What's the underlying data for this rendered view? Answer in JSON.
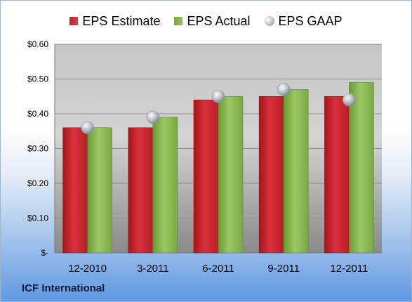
{
  "company": "ICF International",
  "colors": {
    "estimate": "#c8262f",
    "actual": "#8bb853",
    "gaap": "#b6bcc4"
  },
  "chart_data": {
    "type": "bar",
    "categories": [
      "12-2010",
      "3-2011",
      "6-2011",
      "9-2011",
      "12-2011"
    ],
    "series": [
      {
        "name": "EPS Estimate",
        "values": [
          0.36,
          0.36,
          0.44,
          0.45,
          0.45
        ]
      },
      {
        "name": "EPS Actual",
        "values": [
          0.36,
          0.39,
          0.45,
          0.47,
          0.49
        ]
      },
      {
        "name": "EPS GAAP",
        "type": "marker",
        "values": [
          0.36,
          0.39,
          0.45,
          0.47,
          0.44
        ]
      }
    ],
    "ylim": [
      0,
      0.6
    ],
    "yticks": [
      0,
      0.1,
      0.2,
      0.3,
      0.4,
      0.5,
      0.6
    ],
    "ytick_labels": [
      "$-",
      "$0.10",
      "$0.20",
      "$0.30",
      "$0.40",
      "$0.50",
      "$0.60"
    ],
    "grid": true,
    "legend": "top"
  }
}
